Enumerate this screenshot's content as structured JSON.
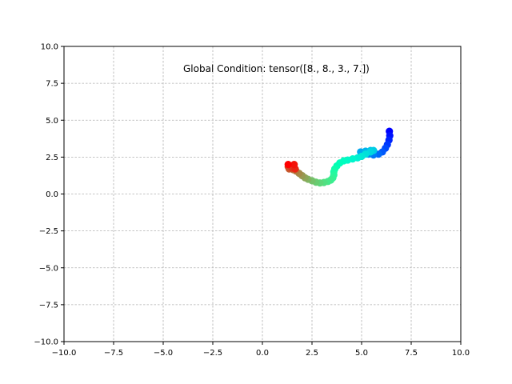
{
  "chart_data": {
    "type": "scatter",
    "title": "",
    "xlabel": "",
    "ylabel": "",
    "xlim": [
      -10,
      10
    ],
    "ylim": [
      -10,
      10
    ],
    "grid": true,
    "colormap": "rainbow",
    "annotation": "Global Condition: tensor([8., 8., 3., 7.])",
    "x_ticks": [
      "−10.0",
      "−7.5",
      "−5.0",
      "−2.5",
      "0.0",
      "2.5",
      "5.0",
      "7.5",
      "10.0"
    ],
    "y_ticks": [
      "−10.0",
      "−7.5",
      "−5.0",
      "−2.5",
      "0.0",
      "2.5",
      "5.0",
      "7.5",
      "10.0"
    ],
    "points": [
      [
        6.4,
        4.25
      ],
      [
        6.42,
        3.95
      ],
      [
        6.38,
        3.65
      ],
      [
        6.3,
        3.35
      ],
      [
        6.2,
        3.1
      ],
      [
        6.05,
        2.85
      ],
      [
        5.85,
        2.7
      ],
      [
        5.6,
        2.65
      ],
      [
        5.35,
        2.7
      ],
      [
        5.1,
        2.8
      ],
      [
        4.95,
        2.85
      ],
      [
        5.2,
        2.9
      ],
      [
        5.45,
        2.95
      ],
      [
        5.6,
        2.95
      ],
      [
        5.45,
        2.85
      ],
      [
        5.2,
        2.7
      ],
      [
        5.0,
        2.55
      ],
      [
        4.8,
        2.45
      ],
      [
        4.55,
        2.38
      ],
      [
        4.3,
        2.3
      ],
      [
        4.1,
        2.25
      ],
      [
        3.9,
        2.1
      ],
      [
        3.75,
        1.9
      ],
      [
        3.65,
        1.7
      ],
      [
        3.6,
        1.5
      ],
      [
        3.6,
        1.3
      ],
      [
        3.55,
        1.1
      ],
      [
        3.45,
        0.95
      ],
      [
        3.3,
        0.85
      ],
      [
        3.1,
        0.78
      ],
      [
        2.9,
        0.75
      ],
      [
        2.7,
        0.8
      ],
      [
        2.5,
        0.9
      ],
      [
        2.3,
        1.0
      ],
      [
        2.15,
        1.1
      ],
      [
        2.0,
        1.25
      ],
      [
        1.85,
        1.4
      ],
      [
        1.7,
        1.55
      ],
      [
        1.55,
        1.65
      ],
      [
        1.35,
        1.7
      ],
      [
        1.3,
        1.85
      ],
      [
        1.5,
        1.75
      ],
      [
        1.65,
        1.7
      ],
      [
        1.6,
        2.0
      ],
      [
        1.3,
        2.0
      ]
    ]
  }
}
